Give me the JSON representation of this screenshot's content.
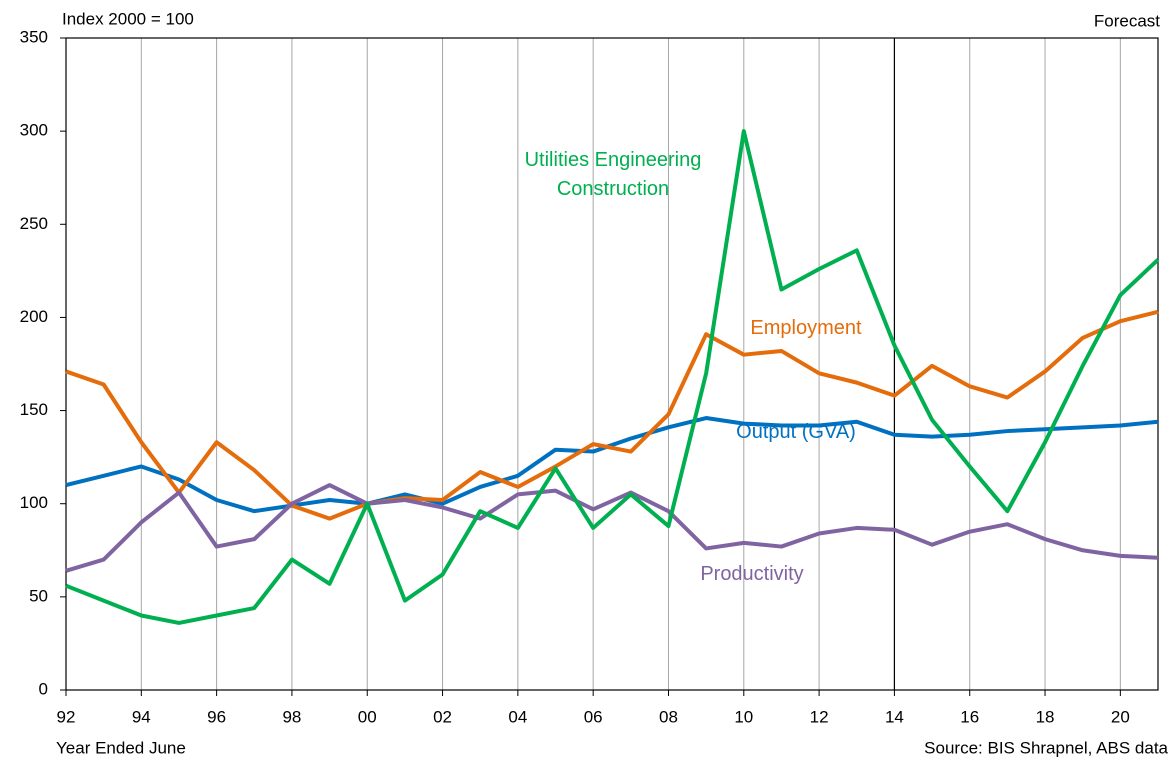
{
  "chart_data": {
    "type": "line",
    "y_axis_label": "Index 2000 = 100",
    "x_axis_label": "Year Ended June",
    "source": "Source: BIS Shrapnel, ABS data",
    "forecast_label": "Forecast",
    "forecast_start": "14",
    "categories": [
      "92",
      null,
      "94",
      null,
      "96",
      null,
      "98",
      null,
      "00",
      null,
      "02",
      null,
      "04",
      null,
      "06",
      null,
      "08",
      null,
      "10",
      null,
      "12",
      null,
      "14",
      null,
      "16",
      null,
      "18",
      null,
      "20",
      null
    ],
    "series": [
      {
        "name": "Output (GVA)",
        "color": "#0070c0",
        "values": [
          110,
          115,
          120,
          113,
          102,
          96,
          99,
          102,
          100,
          105,
          100,
          109,
          115,
          129,
          128,
          135,
          141,
          146,
          143,
          142,
          142,
          144,
          137,
          136,
          137,
          139,
          140,
          141,
          142,
          144
        ]
      },
      {
        "name": "Employment",
        "color": "#e46c0a",
        "values": [
          171,
          164,
          133,
          106,
          133,
          118,
          99,
          92,
          100,
          103,
          102,
          117,
          109,
          120,
          132,
          128,
          148,
          191,
          180,
          182,
          170,
          165,
          158,
          174,
          163,
          157,
          171,
          189,
          198,
          203
        ]
      },
      {
        "name": "Productivity",
        "color": "#8064a2",
        "values": [
          64,
          70,
          90,
          106,
          77,
          81,
          100,
          110,
          100,
          102,
          98,
          92,
          105,
          107,
          97,
          106,
          96,
          76,
          79,
          77,
          84,
          87,
          86,
          78,
          85,
          89,
          81,
          75,
          72,
          71
        ]
      },
      {
        "name": "Utilities Engineering Construction",
        "color": "#00b050",
        "values": [
          56,
          48,
          40,
          36,
          40,
          44,
          70,
          57,
          100,
          48,
          62,
          96,
          87,
          119,
          87,
          105,
          88,
          170,
          300,
          215,
          226,
          236,
          185,
          145,
          120,
          96,
          133,
          174,
          212,
          231
        ]
      }
    ],
    "ylim": [
      0,
      350
    ],
    "yticks": [
      0,
      50,
      100,
      150,
      200,
      250,
      300,
      350
    ],
    "grid": true
  }
}
